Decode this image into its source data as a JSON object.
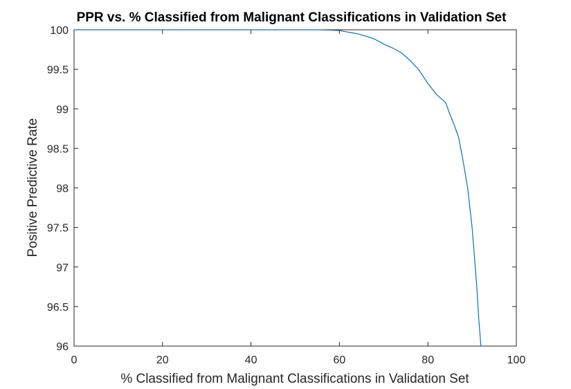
{
  "chart_data": {
    "type": "line",
    "title": "PPR vs. % Classified from Malignant Classifications in Validation Set",
    "xlabel": "% Classified from Malignant Classifications in Validation Set",
    "ylabel": "Positive Predictive Rate",
    "xlim": [
      0,
      100
    ],
    "ylim": [
      96,
      100
    ],
    "xticks": [
      "0",
      "20",
      "40",
      "60",
      "80",
      "100"
    ],
    "yticks": [
      "96",
      "96.5",
      "97",
      "97.5",
      "98",
      "98.5",
      "99",
      "99.5",
      "100"
    ],
    "grid": false,
    "series": [
      {
        "color": "#0072BD",
        "x": [
          0,
          10,
          20,
          30,
          40,
          50,
          55,
          58,
          60,
          62,
          64,
          66,
          68,
          70,
          72,
          74,
          76,
          78,
          80,
          82,
          84,
          85,
          86,
          87,
          88,
          89,
          90,
          91,
          91.5,
          92
        ],
        "y": [
          100,
          100,
          100,
          100,
          100,
          100,
          100,
          99.995,
          99.99,
          99.97,
          99.95,
          99.92,
          99.88,
          99.82,
          99.77,
          99.71,
          99.61,
          99.49,
          99.32,
          99.18,
          99.08,
          98.93,
          98.79,
          98.63,
          98.33,
          98.0,
          97.5,
          96.8,
          96.35,
          96.0
        ]
      }
    ]
  }
}
